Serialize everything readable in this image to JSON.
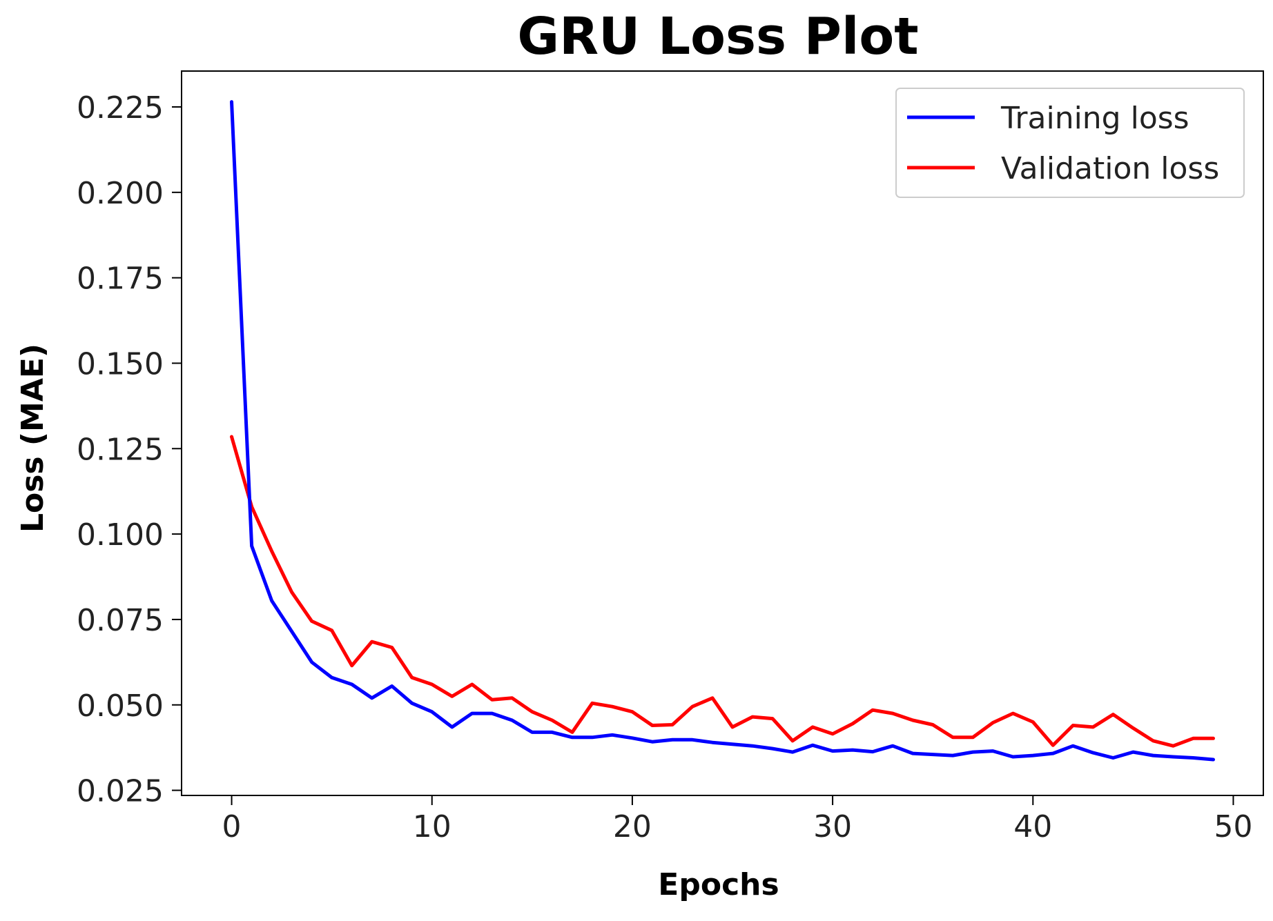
{
  "chart_data": {
    "type": "line",
    "title": "GRU Loss Plot",
    "xlabel": "Epochs",
    "ylabel": "Loss (MAE)",
    "xlim": [
      -2.5,
      51.5
    ],
    "ylim": [
      0.0235,
      0.2355
    ],
    "xticks": [
      "0",
      "10",
      "20",
      "30",
      "40",
      "50"
    ],
    "yticks": [
      "0.025",
      "0.050",
      "0.075",
      "0.100",
      "0.125",
      "0.150",
      "0.175",
      "0.200",
      "0.225"
    ],
    "grid": false,
    "legend_position": "top-right",
    "x": [
      0,
      1,
      2,
      3,
      4,
      5,
      6,
      7,
      8,
      9,
      10,
      11,
      12,
      13,
      14,
      15,
      16,
      17,
      18,
      19,
      20,
      21,
      22,
      23,
      24,
      25,
      26,
      27,
      28,
      29,
      30,
      31,
      32,
      33,
      34,
      35,
      36,
      37,
      38,
      39,
      40,
      41,
      42,
      43,
      44,
      45,
      46,
      47,
      48,
      49
    ],
    "series": [
      {
        "name": "Training loss",
        "color": "#0000ff",
        "values": [
          0.2265,
          0.0965,
          0.0805,
          0.0715,
          0.0625,
          0.058,
          0.056,
          0.052,
          0.0555,
          0.0505,
          0.048,
          0.0435,
          0.0475,
          0.0475,
          0.0455,
          0.042,
          0.042,
          0.0405,
          0.0405,
          0.0412,
          0.0403,
          0.0392,
          0.0398,
          0.0398,
          0.039,
          0.0385,
          0.038,
          0.0372,
          0.0362,
          0.0382,
          0.0365,
          0.0368,
          0.0363,
          0.038,
          0.0358,
          0.0355,
          0.0352,
          0.0362,
          0.0365,
          0.0348,
          0.0352,
          0.0358,
          0.038,
          0.036,
          0.0345,
          0.0362,
          0.0352,
          0.0348,
          0.0345,
          0.034
        ]
      },
      {
        "name": "Validation loss",
        "color": "#ff0000",
        "values": [
          0.1285,
          0.108,
          0.095,
          0.083,
          0.0745,
          0.0718,
          0.0615,
          0.0685,
          0.0668,
          0.058,
          0.056,
          0.0525,
          0.056,
          0.0515,
          0.052,
          0.048,
          0.0455,
          0.042,
          0.0505,
          0.0495,
          0.048,
          0.044,
          0.0442,
          0.0495,
          0.052,
          0.0435,
          0.0465,
          0.046,
          0.0395,
          0.0435,
          0.0415,
          0.0445,
          0.0485,
          0.0475,
          0.0455,
          0.0442,
          0.0405,
          0.0405,
          0.0448,
          0.0475,
          0.045,
          0.0382,
          0.044,
          0.0435,
          0.0472,
          0.0432,
          0.0395,
          0.038,
          0.0402,
          0.0402
        ]
      }
    ]
  }
}
